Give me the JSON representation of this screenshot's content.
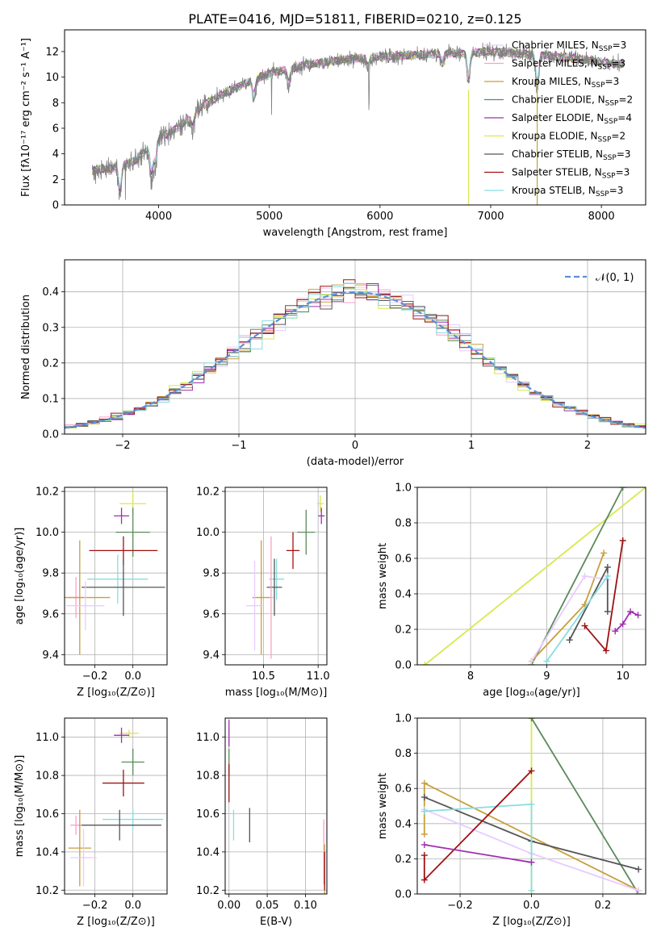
{
  "figure": {
    "title": "PLATE=0416, MJD=51811, FIBERID=0210, z=0.125"
  },
  "series": [
    {
      "name": "Chabrier MILES",
      "label": "Chabrier MILES, N",
      "nssp": "=3",
      "color": "#e8ccff"
    },
    {
      "name": "Salpeter MILES",
      "label": "Salpeter MILES, N",
      "nssp": "=3",
      "color": "#ff9ec7"
    },
    {
      "name": "Kroupa MILES",
      "label": "Kroupa MILES, N",
      "nssp": "=3",
      "color": "#c79f3a"
    },
    {
      "name": "Chabrier ELODIE",
      "label": "Chabrier ELODIE, N",
      "nssp": "=2",
      "color": "#5a8a5a"
    },
    {
      "name": "Salpeter ELODIE",
      "label": "Salpeter ELODIE, N",
      "nssp": "=4",
      "color": "#a02fb0"
    },
    {
      "name": "Kroupa ELODIE",
      "label": "Kroupa ELODIE, N",
      "nssp": "=2",
      "color": "#d9e84f"
    },
    {
      "name": "Chabrier STELIB",
      "label": "Chabrier STELIB, N",
      "nssp": "=3",
      "color": "#555555"
    },
    {
      "name": "Salpeter STELIB",
      "label": "Salpeter STELIB, N",
      "nssp": "=3",
      "color": "#a01010"
    },
    {
      "name": "Kroupa STELIB",
      "label": "Kroupa STELIB, N",
      "nssp": "=3",
      "color": "#88dde0"
    }
  ],
  "chart_data": [
    {
      "id": "spectrum",
      "type": "line",
      "xlabel": "wavelength [Angstrom, rest frame]",
      "ylabel": "Flux [fλ10⁻¹⁷ erg cm⁻² s⁻¹ A⁻¹]",
      "xlim": [
        3150,
        8400
      ],
      "ylim": [
        0,
        13.7
      ],
      "xticks": [
        4000,
        5000,
        6000,
        7000,
        8000
      ],
      "yticks": [
        0,
        2,
        4,
        6,
        8,
        10,
        12
      ],
      "data_color": "#808080",
      "model_color": "#88dde0",
      "continuum": [
        [
          3400,
          2.7
        ],
        [
          3600,
          2.9
        ],
        [
          3800,
          3.5
        ],
        [
          4000,
          5.2
        ],
        [
          4200,
          6.2
        ],
        [
          4400,
          7.8
        ],
        [
          4700,
          9.2
        ],
        [
          5000,
          10.3
        ],
        [
          5300,
          10.9
        ],
        [
          5600,
          11.3
        ],
        [
          6000,
          11.6
        ],
        [
          6500,
          11.8
        ],
        [
          7000,
          12.0
        ],
        [
          7500,
          11.7
        ],
        [
          8000,
          11.2
        ],
        [
          8200,
          11.0
        ]
      ],
      "dips": [
        [
          3650,
          2.5
        ],
        [
          3935,
          2.8
        ],
        [
          3970,
          2.0
        ],
        [
          4305,
          1.3
        ],
        [
          4861,
          1.6
        ],
        [
          5175,
          1.5
        ],
        [
          5890,
          1.0
        ],
        [
          6563,
          0.8
        ],
        [
          6800,
          2.5
        ],
        [
          7420,
          3.0
        ]
      ]
    },
    {
      "id": "residuals",
      "type": "step",
      "xlabel": "(data-model)/error",
      "ylabel": "Normed distribution",
      "xlim": [
        -2.5,
        2.5
      ],
      "ylim": [
        0,
        0.49
      ],
      "xticks": [
        -2,
        -1,
        0,
        1,
        2
      ],
      "xtick_labels": [
        "−2",
        "−1",
        "0",
        "1",
        "2"
      ],
      "yticks": [
        0,
        0.1,
        0.2,
        0.3,
        0.4
      ],
      "reference": {
        "name": "𝒩(0, 1)",
        "mean": 0,
        "sigma": 1,
        "color": "#5b8fd9"
      }
    },
    {
      "id": "age_vs_Z",
      "type": "scatter-errorbar",
      "xlabel": "Z [log₁₀(Z/Z⊙)]",
      "ylabel": "age  [log₁₀(age/yr)]",
      "xlim": [
        -0.36,
        0.18
      ],
      "ylim": [
        9.35,
        10.22
      ],
      "xticks": [
        -0.2,
        0.0
      ],
      "xtick_labels": [
        "−0.2",
        "0.0"
      ],
      "yticks": [
        9.4,
        9.6,
        9.8,
        10.0,
        10.2
      ],
      "points": [
        {
          "s": 5,
          "x": 0.0,
          "xe": 0.07,
          "y": 10.14,
          "ye": 0.06
        },
        {
          "s": 4,
          "x": -0.06,
          "xe": 0.04,
          "y": 10.08,
          "ye": 0.04
        },
        {
          "s": 3,
          "x": 0.0,
          "xe": 0.09,
          "y": 10.0,
          "ye": 0.12
        },
        {
          "s": 7,
          "x": -0.05,
          "xe": 0.18,
          "y": 9.91,
          "ye": 0.07
        },
        {
          "s": 8,
          "x": -0.08,
          "xe": 0.16,
          "y": 9.77,
          "ye": 0.12
        },
        {
          "s": 6,
          "x": -0.05,
          "xe": 0.22,
          "y": 9.73,
          "ye": 0.14
        },
        {
          "s": 1,
          "x": -0.3,
          "xe": 0.04,
          "y": 9.68,
          "ye": 0.1
        },
        {
          "s": 2,
          "x": -0.28,
          "xe": 0.16,
          "y": 9.68,
          "ye": 0.28
        },
        {
          "s": 0,
          "x": -0.25,
          "xe": 0.1,
          "y": 9.64,
          "ye": 0.12
        }
      ]
    },
    {
      "id": "age_vs_mass",
      "type": "scatter-errorbar",
      "xlabel": "mass [log₁₀(M/M⊙)]",
      "ylabel": "",
      "xlim": [
        10.15,
        11.08
      ],
      "ylim": [
        9.35,
        10.22
      ],
      "xticks": [
        10.5,
        11.0
      ],
      "xtick_labels": [
        "10.5",
        "11.0"
      ],
      "yticks": [
        9.4,
        9.6,
        9.8,
        10.0,
        10.2
      ],
      "points": [
        {
          "s": 5,
          "x": 11.02,
          "xe": 0.03,
          "y": 10.14,
          "ye": 0.04
        },
        {
          "s": 4,
          "x": 11.03,
          "xe": 0.03,
          "y": 10.08,
          "ye": 0.04
        },
        {
          "s": 3,
          "x": 10.89,
          "xe": 0.08,
          "y": 10.0,
          "ye": 0.11
        },
        {
          "s": 7,
          "x": 10.77,
          "xe": 0.06,
          "y": 9.91,
          "ye": 0.09
        },
        {
          "s": 8,
          "x": 10.62,
          "xe": 0.07,
          "y": 9.77,
          "ye": 0.1
        },
        {
          "s": 6,
          "x": 10.6,
          "xe": 0.07,
          "y": 9.73,
          "ye": 0.14
        },
        {
          "s": 1,
          "x": 10.57,
          "xe": 0.02,
          "y": 9.68,
          "ye": 0.3
        },
        {
          "s": 2,
          "x": 10.48,
          "xe": 0.08,
          "y": 9.68,
          "ye": 0.28
        },
        {
          "s": 0,
          "x": 10.42,
          "xe": 0.08,
          "y": 9.64,
          "ye": 0.22
        }
      ]
    },
    {
      "id": "weight_vs_age",
      "type": "line",
      "xlabel": "age  [log₁₀(age/yr)]",
      "ylabel": "mass weight",
      "xlim": [
        7.3,
        10.3
      ],
      "ylim": [
        0,
        1.0
      ],
      "xticks": [
        8,
        9,
        10
      ],
      "xtick_labels": [
        "8",
        "9",
        "10"
      ],
      "yticks": [
        0,
        0.2,
        0.4,
        0.6,
        0.8,
        1.0
      ],
      "series": [
        {
          "s": 5,
          "pts": [
            [
              7.4,
              0.0
            ],
            [
              10.3,
              1.0
            ]
          ]
        },
        {
          "s": 3,
          "pts": [
            [
              8.8,
              0.0
            ],
            [
              10.0,
              1.0
            ]
          ]
        },
        {
          "s": 2,
          "pts": [
            [
              8.8,
              0.02
            ],
            [
              9.5,
              0.34
            ],
            [
              9.75,
              0.63
            ]
          ]
        },
        {
          "s": 0,
          "pts": [
            [
              8.8,
              0.02
            ],
            [
              9.5,
              0.5
            ],
            [
              9.8,
              0.48
            ]
          ]
        },
        {
          "s": 6,
          "pts": [
            [
              9.3,
              0.14
            ],
            [
              9.8,
              0.55
            ],
            [
              9.8,
              0.3
            ]
          ]
        },
        {
          "s": 8,
          "pts": [
            [
              9.0,
              0.02
            ],
            [
              9.8,
              0.5
            ]
          ]
        },
        {
          "s": 7,
          "pts": [
            [
              9.5,
              0.22
            ],
            [
              9.78,
              0.08
            ],
            [
              10.0,
              0.7
            ]
          ]
        },
        {
          "s": 4,
          "pts": [
            [
              9.9,
              0.19
            ],
            [
              10.0,
              0.23
            ],
            [
              10.1,
              0.3
            ],
            [
              10.2,
              0.28
            ]
          ]
        }
      ]
    },
    {
      "id": "mass_vs_Z",
      "type": "scatter-errorbar",
      "xlabel": "Z [log₁₀(Z/Z⊙)]",
      "ylabel": "mass [log₁₀(M/M⊙)]",
      "xlim": [
        -0.36,
        0.18
      ],
      "ylim": [
        10.18,
        11.1
      ],
      "xticks": [
        -0.2,
        0.0
      ],
      "xtick_labels": [
        "−0.2",
        "0.0"
      ],
      "yticks": [
        10.2,
        10.4,
        10.6,
        10.8,
        11.0
      ],
      "points": [
        {
          "s": 5,
          "x": -0.02,
          "xe": 0.05,
          "y": 11.02,
          "ye": 0.02
        },
        {
          "s": 4,
          "x": -0.06,
          "xe": 0.04,
          "y": 11.01,
          "ye": 0.04
        },
        {
          "s": 3,
          "x": 0.0,
          "xe": 0.06,
          "y": 10.87,
          "ye": 0.07
        },
        {
          "s": 7,
          "x": -0.05,
          "xe": 0.11,
          "y": 10.76,
          "ye": 0.07
        },
        {
          "s": 8,
          "x": 0.0,
          "xe": 0.16,
          "y": 10.57,
          "ye": 0.05
        },
        {
          "s": 6,
          "x": -0.07,
          "xe": 0.22,
          "y": 10.54,
          "ye": 0.08
        },
        {
          "s": 1,
          "x": -0.3,
          "xe": 0.03,
          "y": 10.54,
          "ye": 0.05
        },
        {
          "s": 2,
          "x": -0.28,
          "xe": 0.06,
          "y": 10.42,
          "ye": 0.2
        },
        {
          "s": 0,
          "x": -0.26,
          "xe": 0.07,
          "y": 10.37,
          "ye": 0.15
        }
      ]
    },
    {
      "id": "mass_vs_EBV",
      "type": "scatter-errorbar",
      "xlabel": "E(B-V)",
      "ylabel": "",
      "xlim": [
        -0.005,
        0.128
      ],
      "ylim": [
        10.18,
        11.1
      ],
      "xticks": [
        0.0,
        0.05,
        0.1
      ],
      "xtick_labels": [
        "0.00",
        "0.05",
        "0.10"
      ],
      "yticks": [
        10.2,
        10.4,
        10.6,
        10.8,
        11.0
      ],
      "points": [
        {
          "s": 5,
          "x": 0.0,
          "xe": 0.0,
          "y": 11.0,
          "ye": 0.05
        },
        {
          "s": 4,
          "x": 0.0,
          "xe": 0.0,
          "y": 11.02,
          "ye": 0.07
        },
        {
          "s": 3,
          "x": 0.0,
          "xe": 0.0,
          "y": 10.87,
          "ye": 0.07
        },
        {
          "s": 7,
          "x": 0.0,
          "xe": 0.0,
          "y": 10.76,
          "ye": 0.1
        },
        {
          "s": 8,
          "x": 0.006,
          "xe": 0.0,
          "y": 10.54,
          "ye": 0.08
        },
        {
          "s": 6,
          "x": 0.027,
          "xe": 0.0,
          "y": 10.54,
          "ye": 0.09
        },
        {
          "s": 1,
          "x": 0.124,
          "xe": 0.0,
          "y": 10.4,
          "ye": 0.17
        },
        {
          "s": 2,
          "x": 0.125,
          "xe": 0.0,
          "y": 10.3,
          "ye": 0.14
        },
        {
          "s": 7,
          "x": 0.125,
          "xe": 0.0,
          "y": 10.3,
          "ye": 0.1
        }
      ]
    },
    {
      "id": "weight_vs_Z",
      "type": "line",
      "xlabel": "Z [log₁₀(Z/Z⊙)]",
      "ylabel": "mass weight",
      "xlim": [
        -0.32,
        0.32
      ],
      "ylim": [
        0,
        1.0
      ],
      "xticks": [
        -0.2,
        0.0,
        0.2
      ],
      "xtick_labels": [
        "−0.2",
        "0.0",
        "0.2"
      ],
      "yticks": [
        0,
        0.2,
        0.4,
        0.6,
        0.8,
        1.0
      ],
      "series": [
        {
          "s": 5,
          "pts": [
            [
              0.0,
              1.0
            ],
            [
              0.0,
              0.0
            ]
          ]
        },
        {
          "s": 3,
          "pts": [
            [
              0.0,
              1.0
            ],
            [
              0.3,
              0.0
            ]
          ]
        },
        {
          "s": 2,
          "pts": [
            [
              -0.3,
              0.34
            ],
            [
              -0.3,
              0.63
            ],
            [
              0.3,
              0.02
            ]
          ]
        },
        {
          "s": 0,
          "pts": [
            [
              -0.3,
              0.48
            ],
            [
              0.0,
              0.23
            ],
            [
              0.3,
              0.02
            ]
          ]
        },
        {
          "s": 6,
          "pts": [
            [
              -0.3,
              0.55
            ],
            [
              0.0,
              0.3
            ],
            [
              0.3,
              0.14
            ]
          ]
        },
        {
          "s": 8,
          "pts": [
            [
              -0.3,
              0.47
            ],
            [
              0.0,
              0.51
            ],
            [
              0.0,
              0.02
            ]
          ]
        },
        {
          "s": 7,
          "pts": [
            [
              -0.3,
              0.22
            ],
            [
              -0.3,
              0.08
            ],
            [
              0.0,
              0.7
            ]
          ]
        },
        {
          "s": 4,
          "pts": [
            [
              -0.3,
              0.28
            ],
            [
              0.0,
              0.18
            ]
          ]
        }
      ]
    }
  ]
}
